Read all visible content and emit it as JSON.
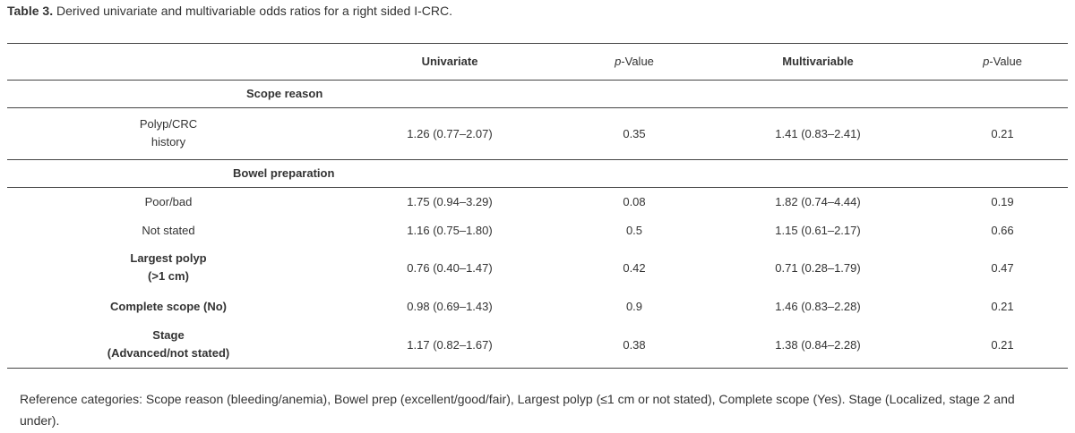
{
  "caption": {
    "label": "Table 3.",
    "text": " Derived univariate and multivariable odds ratios for a right sided I-CRC."
  },
  "header": {
    "univariate": "Univariate",
    "pvalue_prefix": "p",
    "pvalue_suffix": "-Value",
    "multivariable": "Multivariable"
  },
  "sections": {
    "scope_reason": "Scope reason",
    "bowel_preparation": "Bowel preparation"
  },
  "rows": [
    {
      "label_line1": "Polyp/CRC",
      "label_line2": "history",
      "univariate": "1.26 (0.77–2.07)",
      "p1": "0.35",
      "multivariable": "1.41 (0.83–2.41)",
      "p2": "0.21"
    },
    {
      "label_line1": "Poor/bad",
      "univariate": "1.75 (0.94–3.29)",
      "p1": "0.08",
      "multivariable": "1.82 (0.74–4.44)",
      "p2": "0.19"
    },
    {
      "label_line1": "Not stated",
      "univariate": "1.16 (0.75–1.80)",
      "p1": "0.5",
      "multivariable": "1.15 (0.61–2.17)",
      "p2": "0.66"
    },
    {
      "label_line1": "Largest polyp",
      "label_line2": "(>1 cm)",
      "univariate": "0.76 (0.40–1.47)",
      "p1": "0.42",
      "multivariable": "0.71 (0.28–1.79)",
      "p2": "0.47"
    },
    {
      "label_line1": "Complete scope (No)",
      "univariate": "0.98 (0.69–1.43)",
      "p1": "0.9",
      "multivariable": "1.46 (0.83–2.28)",
      "p2": "0.21"
    },
    {
      "label_line1": "Stage",
      "label_line2": "(Advanced/not stated)",
      "univariate": "1.17 (0.82–1.67)",
      "p1": "0.38",
      "multivariable": "1.38 (0.84–2.28)",
      "p2": "0.21"
    }
  ],
  "footnote": "Reference categories: Scope reason (bleeding/anemia), Bowel prep (excellent/good/fair), Largest polyp (≤1 cm or not stated), Complete scope (Yes). Stage (Localized, stage 2 and under)."
}
